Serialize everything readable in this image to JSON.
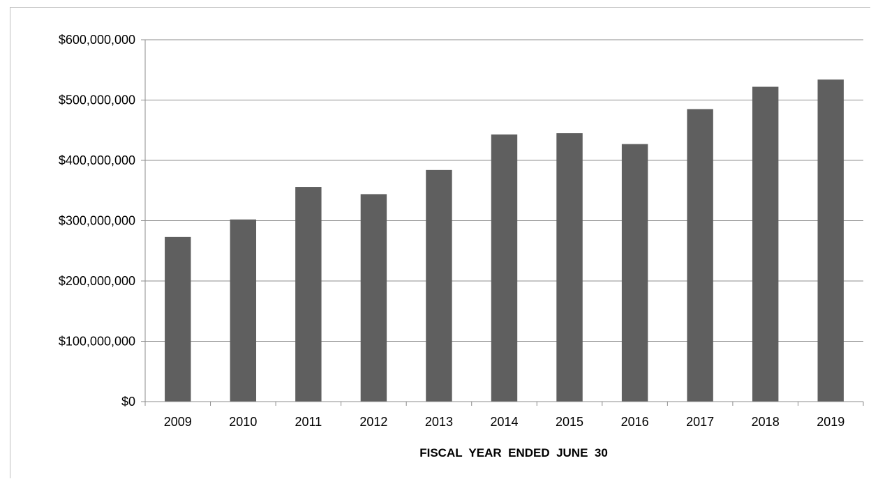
{
  "chart_data": {
    "type": "bar",
    "title": "",
    "xlabel": "FISCAL  YEAR  ENDED  JUNE  30",
    "ylabel": "",
    "categories": [
      "2009",
      "2010",
      "2011",
      "2012",
      "2013",
      "2014",
      "2015",
      "2016",
      "2017",
      "2018",
      "2019"
    ],
    "values": [
      273000000,
      302000000,
      356000000,
      344000000,
      384000000,
      443000000,
      445000000,
      427000000,
      485000000,
      522000000,
      534000000
    ],
    "ylim": [
      0,
      600000000
    ],
    "yticks": [
      0,
      100000000,
      200000000,
      300000000,
      400000000,
      500000000,
      600000000
    ],
    "ytick_labels": [
      "$0",
      "$100,000,000",
      "$200,000,000",
      "$300,000,000",
      "$400,000,000",
      "$500,000,000",
      "$600,000,000"
    ],
    "grid": true,
    "legend": "none",
    "bar_color": "#5f5f5f",
    "grid_color": "#8c8c8c",
    "axis_color": "#8c8c8c"
  }
}
